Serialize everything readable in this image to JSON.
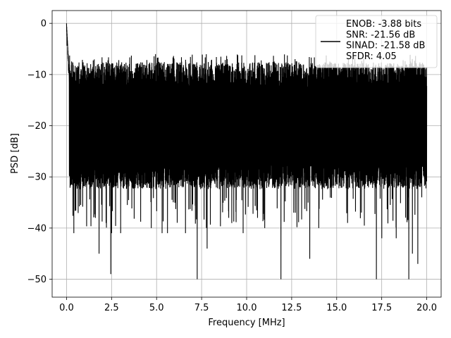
{
  "chart_data": {
    "type": "line",
    "title": "",
    "xlabel": "Frequency [MHz]",
    "ylabel": "PSD [dB]",
    "xlim": [
      -0.8,
      20.8
    ],
    "ylim": [
      -53.5,
      2.5
    ],
    "xticks": [
      0.0,
      2.5,
      5.0,
      7.5,
      10.0,
      12.5,
      15.0,
      17.5,
      20.0
    ],
    "xtick_labels": [
      "0.0",
      "2.5",
      "5.0",
      "7.5",
      "10.0",
      "12.5",
      "15.0",
      "17.5",
      "20.0"
    ],
    "yticks": [
      0,
      -10,
      -20,
      -30,
      -40,
      -50
    ],
    "ytick_labels": [
      "0",
      "−10",
      "−20",
      "−30",
      "−40",
      "−50"
    ],
    "grid": true,
    "legend_position": "top-right",
    "series": [
      {
        "name": "ENOB: -3.88 bits\nSNR: -21.56 dB\nSINAD: -21.58 dB\nSFDR: 4.05",
        "color": "#000000",
        "noise": {
          "x_start": 0.0,
          "x_end": 20.0,
          "peak_value": 0.0,
          "typical_max": -10,
          "typical_min": -30,
          "overall_max": -6,
          "overall_min": -51
        },
        "notable_dips": [
          {
            "x": 0.4,
            "y": -41
          },
          {
            "x": 1.6,
            "y": -38
          },
          {
            "x": 1.8,
            "y": -45
          },
          {
            "x": 2.2,
            "y": -37
          },
          {
            "x": 2.45,
            "y": -49
          },
          {
            "x": 2.5,
            "y": -41
          },
          {
            "x": 3.0,
            "y": -41
          },
          {
            "x": 4.7,
            "y": -40
          },
          {
            "x": 5.3,
            "y": -41
          },
          {
            "x": 5.6,
            "y": -41
          },
          {
            "x": 6.6,
            "y": -41
          },
          {
            "x": 7.25,
            "y": -50
          },
          {
            "x": 7.8,
            "y": -44
          },
          {
            "x": 9.0,
            "y": -38
          },
          {
            "x": 9.8,
            "y": -41
          },
          {
            "x": 10.6,
            "y": -38
          },
          {
            "x": 11.0,
            "y": -40
          },
          {
            "x": 11.9,
            "y": -50
          },
          {
            "x": 12.7,
            "y": -37
          },
          {
            "x": 13.5,
            "y": -46
          },
          {
            "x": 14.0,
            "y": -40
          },
          {
            "x": 15.6,
            "y": -39
          },
          {
            "x": 17.2,
            "y": -50
          },
          {
            "x": 17.5,
            "y": -42
          },
          {
            "x": 18.3,
            "y": -42
          },
          {
            "x": 19.0,
            "y": -50
          },
          {
            "x": 19.2,
            "y": -45
          },
          {
            "x": 19.5,
            "y": -47
          }
        ]
      }
    ]
  }
}
